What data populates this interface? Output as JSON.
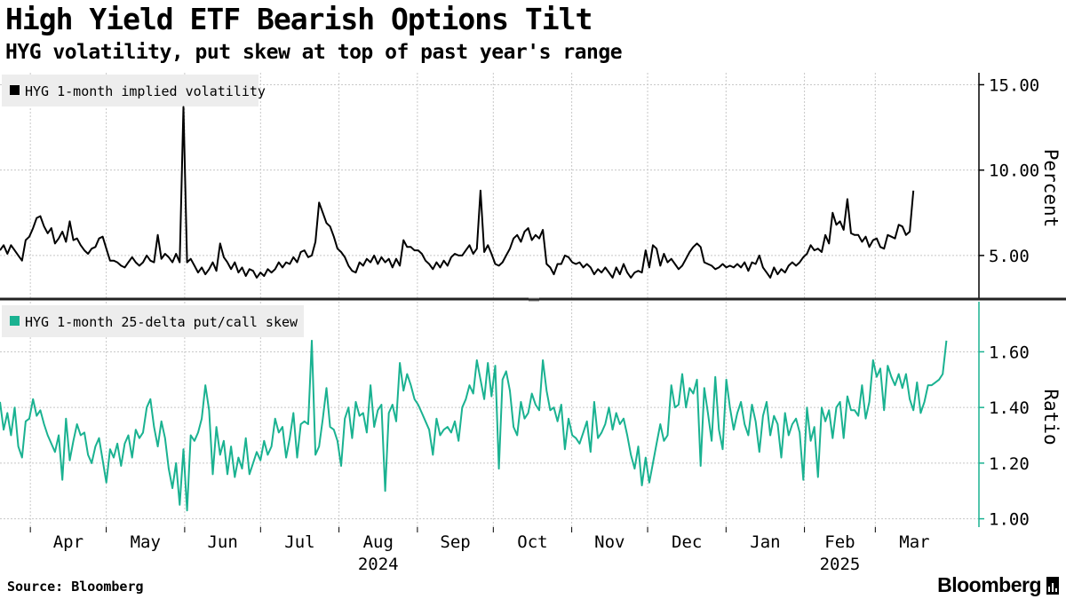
{
  "header": {
    "title": "High Yield ETF Bearish Options Tilt",
    "subtitle": "HYG volatility, put skew at top of past year's range"
  },
  "footer": {
    "source": "Source: Bloomberg",
    "brand": "Bloomberg"
  },
  "colors": {
    "volatility_line": "#000000",
    "skew_line": "#1ab291",
    "grid": "#c8c8c8",
    "legend_bg": "#ededed"
  },
  "chart_data": [
    {
      "type": "line",
      "title": "HYG 1-month implied volatility",
      "ylabel": "Percent",
      "ylim": [
        2.5,
        15.7
      ],
      "yticks": [
        5,
        10,
        15
      ],
      "ytick_labels": [
        "5.00",
        "10.00",
        "15.00"
      ],
      "series": [
        {
          "name": "HYG 1-month implied volatility",
          "x_start": "2024-03-20",
          "x_step_days": 1.45,
          "values": [
            5.3,
            5.6,
            5.1,
            5.6,
            5.3,
            5.0,
            4.7,
            5.9,
            6.1,
            6.6,
            7.2,
            7.3,
            6.7,
            6.3,
            6.6,
            5.7,
            6.0,
            6.4,
            5.8,
            7.0,
            5.9,
            6.0,
            5.6,
            5.3,
            5.1,
            5.4,
            5.5,
            6.0,
            6.1,
            5.4,
            4.7,
            4.7,
            4.6,
            4.4,
            4.3,
            4.6,
            4.9,
            4.6,
            4.4,
            4.6,
            5.0,
            4.7,
            4.6,
            6.2,
            4.8,
            5.1,
            4.9,
            4.6,
            5.1,
            4.6,
            13.7,
            4.6,
            4.8,
            4.4,
            4.0,
            4.3,
            3.9,
            4.2,
            4.6,
            4.1,
            5.7,
            4.9,
            4.6,
            4.2,
            4.6,
            4.0,
            4.3,
            3.8,
            4.2,
            4.1,
            3.7,
            4.0,
            3.8,
            4.2,
            4.0,
            4.2,
            4.6,
            4.3,
            4.6,
            4.5,
            4.9,
            4.6,
            5.2,
            5.3,
            4.9,
            5.0,
            5.8,
            8.1,
            7.5,
            6.9,
            6.7,
            6.1,
            5.4,
            5.2,
            4.9,
            4.4,
            4.1,
            4.0,
            4.6,
            4.4,
            4.8,
            4.6,
            5.0,
            4.5,
            4.9,
            4.6,
            4.8,
            4.3,
            4.8,
            4.4,
            5.9,
            5.5,
            5.5,
            5.3,
            5.3,
            5.1,
            4.7,
            4.5,
            4.2,
            4.6,
            4.3,
            4.7,
            4.4,
            4.9,
            5.1,
            5.0,
            5.0,
            5.3,
            5.6,
            5.1,
            5.4,
            8.8,
            5.2,
            5.6,
            5.1,
            4.5,
            4.4,
            4.6,
            5.0,
            5.4,
            6.0,
            6.2,
            5.8,
            6.4,
            6.6,
            5.9,
            6.2,
            6.0,
            6.5,
            4.5,
            4.3,
            3.9,
            4.5,
            4.5,
            5.0,
            4.9,
            4.6,
            4.5,
            4.6,
            4.3,
            4.5,
            4.3,
            3.9,
            4.2,
            4.0,
            4.3,
            4.0,
            3.7,
            4.3,
            3.9,
            4.5,
            4.0,
            3.7,
            4.0,
            4.1,
            4.0,
            5.3,
            4.3,
            5.6,
            5.4,
            4.4,
            5.1,
            4.6,
            4.8,
            4.5,
            4.2,
            4.4,
            4.8,
            5.2,
            5.5,
            5.7,
            5.5,
            4.6,
            4.5,
            4.4,
            4.2,
            4.3,
            4.5,
            4.3,
            4.4,
            4.3,
            4.5,
            4.3,
            4.6,
            4.1,
            4.6,
            4.5,
            5.0,
            4.3,
            4.0,
            3.7,
            4.3,
            3.9,
            4.2,
            4.0,
            4.4,
            4.6,
            4.4,
            4.6,
            4.9,
            5.1,
            5.6,
            5.3,
            5.4,
            5.2,
            6.2,
            5.7,
            7.5,
            6.8,
            7.0,
            6.5,
            8.3,
            6.3,
            6.2,
            6.2,
            5.8,
            6.1,
            5.5,
            5.9,
            6.0,
            5.5,
            5.4,
            6.2,
            6.1,
            6.0,
            6.8,
            6.7,
            6.2,
            6.4,
            8.8
          ]
        }
      ]
    },
    {
      "type": "line",
      "title": "HYG 1-month 25-delta put/call skew",
      "ylabel": "Ratio",
      "ylim": [
        0.97,
        1.78
      ],
      "yticks": [
        1.0,
        1.2,
        1.4,
        1.6
      ],
      "ytick_labels": [
        "1.00",
        "1.20",
        "1.40",
        "1.60"
      ],
      "series": [
        {
          "name": "HYG 1-month 25-delta put/call skew",
          "x_start": "2024-03-20",
          "x_step_days": 1.45,
          "values": [
            1.42,
            1.32,
            1.38,
            1.3,
            1.4,
            1.26,
            1.22,
            1.35,
            1.36,
            1.43,
            1.37,
            1.39,
            1.34,
            1.3,
            1.27,
            1.24,
            1.3,
            1.14,
            1.36,
            1.21,
            1.28,
            1.34,
            1.3,
            1.31,
            1.23,
            1.2,
            1.26,
            1.29,
            1.21,
            1.13,
            1.25,
            1.22,
            1.27,
            1.19,
            1.27,
            1.3,
            1.22,
            1.32,
            1.29,
            1.31,
            1.4,
            1.43,
            1.33,
            1.26,
            1.35,
            1.29,
            1.18,
            1.11,
            1.2,
            1.05,
            1.25,
            1.03,
            1.3,
            1.28,
            1.31,
            1.36,
            1.48,
            1.39,
            1.16,
            1.33,
            1.23,
            1.28,
            1.16,
            1.26,
            1.15,
            1.22,
            1.18,
            1.29,
            1.16,
            1.2,
            1.24,
            1.21,
            1.28,
            1.23,
            1.26,
            1.36,
            1.31,
            1.33,
            1.22,
            1.29,
            1.38,
            1.22,
            1.34,
            1.35,
            1.34,
            1.64,
            1.23,
            1.26,
            1.36,
            1.47,
            1.33,
            1.32,
            1.28,
            1.19,
            1.36,
            1.4,
            1.29,
            1.42,
            1.37,
            1.38,
            1.31,
            1.48,
            1.33,
            1.39,
            1.41,
            1.1,
            1.38,
            1.41,
            1.35,
            1.56,
            1.46,
            1.52,
            1.48,
            1.43,
            1.41,
            1.38,
            1.35,
            1.32,
            1.23,
            1.36,
            1.3,
            1.32,
            1.33,
            1.31,
            1.35,
            1.28,
            1.4,
            1.43,
            1.48,
            1.45,
            1.57,
            1.5,
            1.43,
            1.56,
            1.44,
            1.55,
            1.18,
            1.5,
            1.53,
            1.46,
            1.33,
            1.3,
            1.42,
            1.36,
            1.38,
            1.45,
            1.41,
            1.39,
            1.57,
            1.46,
            1.39,
            1.4,
            1.35,
            1.41,
            1.25,
            1.36,
            1.3,
            1.29,
            1.27,
            1.31,
            1.35,
            1.24,
            1.42,
            1.29,
            1.31,
            1.34,
            1.4,
            1.32,
            1.38,
            1.34,
            1.36,
            1.3,
            1.23,
            1.18,
            1.26,
            1.12,
            1.22,
            1.13,
            1.2,
            1.27,
            1.34,
            1.28,
            1.3,
            1.48,
            1.4,
            1.41,
            1.52,
            1.4,
            1.47,
            1.45,
            1.5,
            1.19,
            1.47,
            1.38,
            1.28,
            1.51,
            1.32,
            1.25,
            1.5,
            1.4,
            1.32,
            1.38,
            1.42,
            1.34,
            1.3,
            1.41,
            1.35,
            1.24,
            1.37,
            1.42,
            1.3,
            1.37,
            1.34,
            1.22,
            1.38,
            1.3,
            1.34,
            1.36,
            1.31,
            1.14,
            1.4,
            1.28,
            1.33,
            1.15,
            1.4,
            1.35,
            1.39,
            1.29,
            1.4,
            1.42,
            1.29,
            1.44,
            1.39,
            1.39,
            1.37,
            1.48,
            1.36,
            1.42,
            1.57,
            1.51,
            1.54,
            1.39,
            1.55,
            1.51,
            1.48,
            1.52,
            1.47,
            1.52,
            1.43,
            1.39,
            1.49,
            1.38,
            1.42,
            1.48,
            1.48,
            1.49,
            1.5,
            1.52,
            1.64
          ]
        }
      ],
      "x_axis": {
        "month_labels": [
          "Apr",
          "May",
          "Jun",
          "Jul",
          "Aug",
          "Sep",
          "Oct",
          "Nov",
          "Dec",
          "Jan",
          "Feb",
          "Mar"
        ],
        "month_starts": [
          "2024-04-01",
          "2024-05-01",
          "2024-06-01",
          "2024-07-01",
          "2024-08-01",
          "2024-09-01",
          "2024-10-01",
          "2024-11-01",
          "2024-12-01",
          "2025-01-01",
          "2025-02-01",
          "2025-03-01"
        ],
        "year_labels": [
          {
            "label": "2024",
            "under": "Aug"
          },
          {
            "label": "2025",
            "under": "Feb"
          }
        ],
        "range": [
          "2024-03-20",
          "2025-04-05"
        ]
      }
    }
  ]
}
